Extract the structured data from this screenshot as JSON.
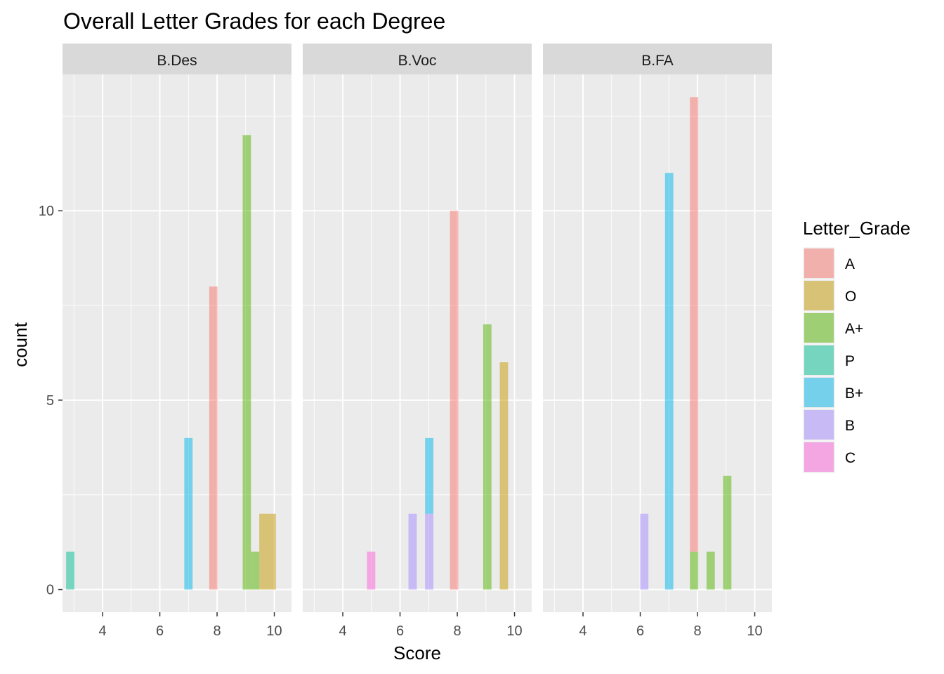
{
  "chart_data": {
    "type": "bar",
    "title": "Overall Letter Grades for each Degree",
    "xlabel": "Score",
    "ylabel": "count",
    "xlim": [
      2.6,
      10.6
    ],
    "ylim": [
      -0.6,
      13.6
    ],
    "xticks": [
      4,
      6,
      8,
      10
    ],
    "yticks": [
      0,
      5,
      10
    ],
    "bin_width": 0.29,
    "grid": true,
    "stacked": true,
    "legend": {
      "title": "Letter_Grade",
      "position": "right",
      "entries": [
        {
          "name": "A",
          "color": "#F8766D"
        },
        {
          "name": "O",
          "color": "#C49A00"
        },
        {
          "name": "A+",
          "color": "#53B400"
        },
        {
          "name": "P",
          "color": "#00C094"
        },
        {
          "name": "B+",
          "color": "#00B6EB"
        },
        {
          "name": "B",
          "color": "#A58AFF"
        },
        {
          "name": "C",
          "color": "#FB61D7"
        }
      ]
    },
    "panels": [
      {
        "label": "B.Des",
        "bars": [
          {
            "x": 2.87,
            "grade": "P",
            "count": 1
          },
          {
            "x": 7.0,
            "grade": "B+",
            "count": 4
          },
          {
            "x": 7.87,
            "grade": "A",
            "count": 8
          },
          {
            "x": 9.04,
            "grade": "A+",
            "count": 12
          },
          {
            "x": 9.33,
            "grade": "A+",
            "count": 1
          },
          {
            "x": 9.62,
            "grade": "O",
            "count": 2
          },
          {
            "x": 9.91,
            "grade": "O",
            "count": 2
          }
        ]
      },
      {
        "label": "B.Voc",
        "bars": [
          {
            "x": 4.99,
            "grade": "C",
            "count": 1
          },
          {
            "x": 6.44,
            "grade": "B",
            "count": 2
          },
          {
            "x": 7.02,
            "grade": "B",
            "count": 2
          },
          {
            "x": 7.02,
            "grade": "B+",
            "count": 2
          },
          {
            "x": 7.89,
            "grade": "A",
            "count": 10
          },
          {
            "x": 9.05,
            "grade": "A+",
            "count": 7
          },
          {
            "x": 9.63,
            "grade": "O",
            "count": 6
          }
        ]
      },
      {
        "label": "B.FA",
        "bars": [
          {
            "x": 6.14,
            "grade": "B",
            "count": 2
          },
          {
            "x": 7.01,
            "grade": "B+",
            "count": 11
          },
          {
            "x": 7.88,
            "grade": "A+",
            "count": 1
          },
          {
            "x": 7.88,
            "grade": "A",
            "count": 12
          },
          {
            "x": 8.46,
            "grade": "A+",
            "count": 1
          },
          {
            "x": 9.04,
            "grade": "A+",
            "count": 3
          }
        ]
      }
    ]
  }
}
